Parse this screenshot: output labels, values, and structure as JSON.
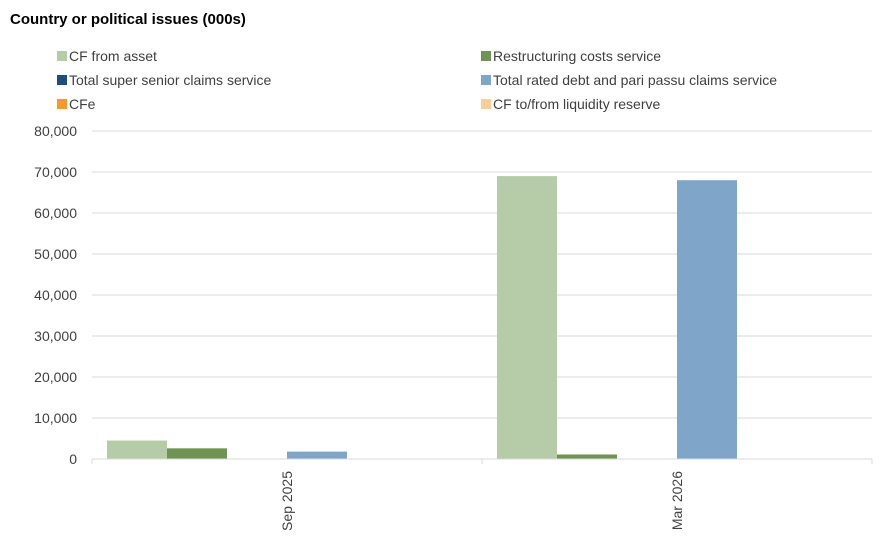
{
  "chart_data": {
    "type": "bar",
    "title": "Country or political issues (000s)",
    "categories": [
      "Sep 2025",
      "Mar 2026"
    ],
    "series": [
      {
        "name": "CF from asset",
        "color": "#b6cba7",
        "values": [
          4500,
          69000
        ]
      },
      {
        "name": "Restructuring costs service",
        "color": "#6f9353",
        "values": [
          2600,
          1100
        ]
      },
      {
        "name": "Total super senior claims service",
        "color": "#1f4e79",
        "values": [
          0,
          0
        ]
      },
      {
        "name": "Total rated debt and pari passu claims service",
        "color": "#7fa6c9",
        "values": [
          1800,
          68000
        ]
      },
      {
        "name": "CFe",
        "color": "#f79a2b",
        "values": [
          0,
          0
        ]
      },
      {
        "name": "CF to/from liquidity reserve",
        "color": "#f9cf95",
        "values": [
          0,
          0
        ]
      }
    ],
    "ylim": [
      0,
      80000
    ],
    "yticks": [
      0,
      10000,
      20000,
      30000,
      40000,
      50000,
      60000,
      70000,
      80000
    ],
    "ytick_labels": [
      "0",
      "10,000",
      "20,000",
      "30,000",
      "40,000",
      "50,000",
      "60,000",
      "70,000",
      "80,000"
    ],
    "grid": true,
    "legend_position": "top"
  }
}
